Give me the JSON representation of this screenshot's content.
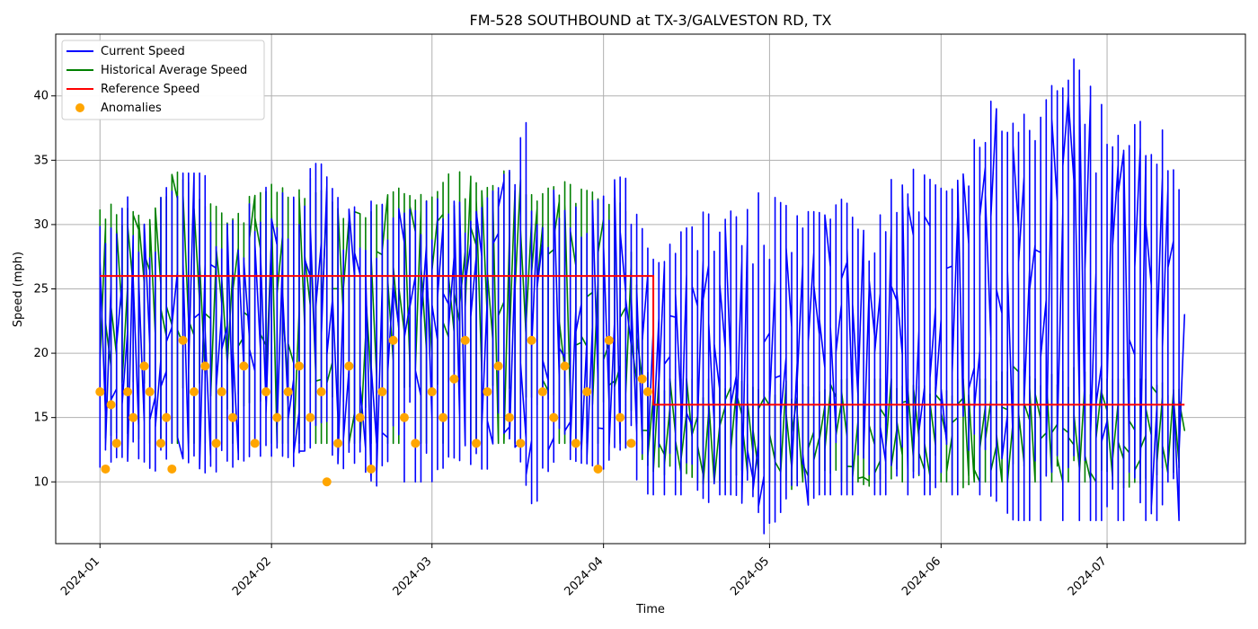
{
  "chart_data": {
    "type": "line",
    "title": "FM-528 SOUTHBOUND at TX-3/GALVESTON RD, TX",
    "xlabel": "Time",
    "ylabel": "Speed (mph)",
    "x_range": [
      "2023-12-24",
      "2024-07-26"
    ],
    "ylim": [
      5.2,
      44.8
    ],
    "x_ticks": [
      "2024-01",
      "2024-02",
      "2024-03",
      "2024-04",
      "2024-05",
      "2024-06",
      "2024-07"
    ],
    "y_ticks": [
      10,
      15,
      20,
      25,
      30,
      35,
      40
    ],
    "grid": true,
    "legend_position": "top-left",
    "legend": [
      "Current Speed",
      "Historical Average Speed",
      "Reference Speed",
      "Anomalies"
    ],
    "colors": {
      "current": "#0000ff",
      "historical": "#008000",
      "reference": "#ff0000",
      "anomaly": "#ffa500"
    },
    "series": [
      {
        "name": "Current Speed",
        "kind": "line",
        "x": [
          "2024-01-01",
          "2024-01-05",
          "2024-01-10",
          "2024-01-15",
          "2024-01-20",
          "2024-01-25",
          "2024-02-01",
          "2024-02-05",
          "2024-02-10",
          "2024-02-15",
          "2024-02-20",
          "2024-02-25",
          "2024-03-01",
          "2024-03-05",
          "2024-03-10",
          "2024-03-15",
          "2024-03-20",
          "2024-03-25",
          "2024-04-01",
          "2024-04-05",
          "2024-04-10",
          "2024-04-15",
          "2024-04-20",
          "2024-04-25",
          "2024-05-01",
          "2024-05-05",
          "2024-05-10",
          "2024-05-15",
          "2024-05-20",
          "2024-05-25",
          "2024-06-01",
          "2024-06-05",
          "2024-06-10",
          "2024-06-15",
          "2024-06-20",
          "2024-06-25",
          "2024-07-01",
          "2024-07-05",
          "2024-07-10",
          "2024-07-15"
        ],
        "y": [
          20,
          22,
          18,
          23,
          21,
          19,
          22,
          20,
          24,
          21,
          18,
          23,
          20,
          22,
          21,
          24,
          19,
          22,
          20,
          23,
          19,
          21,
          18,
          22,
          17,
          20,
          21,
          23,
          19,
          22,
          20,
          24,
          23,
          26,
          25,
          27,
          22,
          24,
          21,
          23
        ],
        "range": [
          [
            11,
            33
          ],
          [
            12,
            33
          ],
          [
            11,
            30
          ],
          [
            12,
            34
          ],
          [
            11,
            34
          ],
          [
            12,
            30
          ],
          [
            12,
            33
          ],
          [
            12,
            32
          ],
          [
            13,
            35
          ],
          [
            11,
            31
          ],
          [
            12,
            32
          ],
          [
            10,
            30
          ],
          [
            10,
            32
          ],
          [
            12,
            32
          ],
          [
            11,
            31
          ],
          [
            11,
            34
          ],
          [
            12,
            39
          ],
          [
            12,
            31
          ],
          [
            11,
            32
          ],
          [
            11,
            34
          ],
          [
            9,
            27
          ],
          [
            9,
            29
          ],
          [
            9,
            31
          ],
          [
            9,
            30
          ],
          [
            7,
            33
          ],
          [
            7,
            31
          ],
          [
            9,
            31
          ],
          [
            9,
            30
          ],
          [
            9,
            29
          ],
          [
            9,
            35
          ],
          [
            9,
            33
          ],
          [
            9,
            32
          ],
          [
            9,
            40
          ],
          [
            7,
            35
          ],
          [
            7,
            40
          ],
          [
            7,
            43
          ],
          [
            7,
            39
          ],
          [
            7,
            37
          ],
          [
            7,
            39
          ],
          [
            7,
            33
          ]
        ]
      },
      {
        "name": "Historical Average Speed",
        "kind": "line",
        "x": [
          "2024-01-01",
          "2024-01-05",
          "2024-01-10",
          "2024-01-15",
          "2024-01-20",
          "2024-01-25",
          "2024-02-01",
          "2024-02-05",
          "2024-02-10",
          "2024-02-15",
          "2024-02-20",
          "2024-02-25",
          "2024-03-01",
          "2024-03-05",
          "2024-03-10",
          "2024-03-15",
          "2024-03-20",
          "2024-03-25",
          "2024-04-01",
          "2024-04-05",
          "2024-04-10",
          "2024-04-15",
          "2024-04-20",
          "2024-04-25",
          "2024-05-01",
          "2024-05-05",
          "2024-05-10",
          "2024-05-15",
          "2024-05-20",
          "2024-05-25",
          "2024-06-01",
          "2024-06-05",
          "2024-06-10",
          "2024-06-15",
          "2024-06-20",
          "2024-06-25",
          "2024-07-01",
          "2024-07-05",
          "2024-07-10",
          "2024-07-15"
        ],
        "y": [
          24,
          25,
          23,
          26,
          24,
          23,
          25,
          24,
          26,
          23,
          24,
          25,
          24,
          26,
          25,
          26,
          24,
          25,
          24,
          25,
          14,
          14,
          13,
          14,
          14,
          13,
          14,
          14,
          13,
          14,
          14,
          13,
          14,
          15,
          14,
          14,
          14,
          13,
          14,
          14
        ],
        "range": [
          [
            13,
            30
          ],
          [
            14,
            29
          ],
          [
            13,
            30
          ],
          [
            13,
            32
          ],
          [
            13,
            31
          ],
          [
            13,
            30
          ],
          [
            13,
            32
          ],
          [
            13,
            32
          ],
          [
            13,
            32
          ],
          [
            13,
            31
          ],
          [
            13,
            31
          ],
          [
            13,
            31
          ],
          [
            13,
            31
          ],
          [
            13,
            32
          ],
          [
            13,
            32
          ],
          [
            13,
            32
          ],
          [
            13,
            31
          ],
          [
            13,
            32
          ],
          [
            13,
            32
          ],
          [
            13,
            31
          ],
          [
            11,
            18
          ],
          [
            10,
            18
          ],
          [
            10,
            18
          ],
          [
            10,
            18
          ],
          [
            10,
            17
          ],
          [
            10,
            18
          ],
          [
            10,
            17
          ],
          [
            10,
            18
          ],
          [
            10,
            18
          ],
          [
            10,
            18
          ],
          [
            10,
            18
          ],
          [
            10,
            18
          ],
          [
            10,
            18
          ],
          [
            10,
            19
          ],
          [
            10,
            18
          ],
          [
            10,
            19
          ],
          [
            10,
            18
          ],
          [
            10,
            18
          ],
          [
            10,
            18
          ],
          [
            10,
            17
          ]
        ]
      },
      {
        "name": "Reference Speed",
        "kind": "step",
        "x": [
          "2024-01-01",
          "2024-04-10",
          "2024-04-10",
          "2024-07-15"
        ],
        "y": [
          26,
          26,
          16,
          16
        ]
      },
      {
        "name": "Anomalies",
        "kind": "scatter",
        "x": [
          "2024-01-01",
          "2024-01-02",
          "2024-01-03",
          "2024-01-04",
          "2024-01-06",
          "2024-01-07",
          "2024-01-09",
          "2024-01-10",
          "2024-01-12",
          "2024-01-13",
          "2024-01-14",
          "2024-01-16",
          "2024-01-18",
          "2024-01-20",
          "2024-01-22",
          "2024-01-23",
          "2024-01-25",
          "2024-01-27",
          "2024-01-29",
          "2024-01-31",
          "2024-02-02",
          "2024-02-04",
          "2024-02-06",
          "2024-02-08",
          "2024-02-10",
          "2024-02-11",
          "2024-02-13",
          "2024-02-15",
          "2024-02-17",
          "2024-02-19",
          "2024-02-21",
          "2024-02-23",
          "2024-02-25",
          "2024-02-27",
          "2024-03-01",
          "2024-03-03",
          "2024-03-05",
          "2024-03-07",
          "2024-03-09",
          "2024-03-11",
          "2024-03-13",
          "2024-03-15",
          "2024-03-17",
          "2024-03-19",
          "2024-03-21",
          "2024-03-23",
          "2024-03-25",
          "2024-03-27",
          "2024-03-29",
          "2024-03-31",
          "2024-04-02",
          "2024-04-04",
          "2024-04-06",
          "2024-04-08",
          "2024-04-09"
        ],
        "y": [
          17,
          11,
          16,
          13,
          17,
          15,
          19,
          17,
          13,
          15,
          11,
          21,
          17,
          19,
          13,
          17,
          15,
          19,
          13,
          17,
          15,
          17,
          19,
          15,
          17,
          10,
          13,
          19,
          15,
          11,
          17,
          21,
          15,
          13,
          17,
          15,
          18,
          21,
          13,
          17,
          19,
          15,
          13,
          21,
          17,
          15,
          19,
          13,
          17,
          11,
          21,
          15,
          13,
          18,
          17
        ]
      }
    ]
  }
}
